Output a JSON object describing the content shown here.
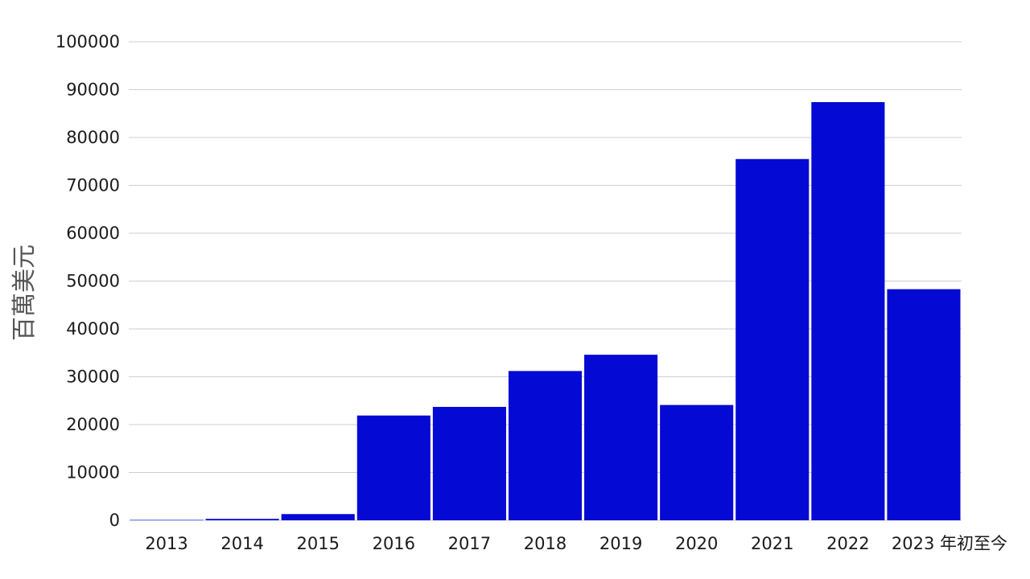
{
  "chart_data": {
    "type": "bar",
    "title": "",
    "xlabel": "",
    "ylabel": "百萬美元",
    "categories": [
      "2013",
      "2014",
      "2015",
      "2016",
      "2017",
      "2018",
      "2019",
      "2020",
      "2021",
      "2022",
      "2023 年初至今"
    ],
    "values": [
      80,
      300,
      1300,
      21900,
      23700,
      31200,
      34600,
      24100,
      75500,
      87400,
      48300
    ],
    "ylim": [
      0,
      100000
    ],
    "yticks": [
      0,
      10000,
      20000,
      30000,
      40000,
      50000,
      60000,
      70000,
      80000,
      90000,
      100000
    ],
    "grid": true,
    "legend": "none",
    "bar_color": "#0409d4"
  }
}
